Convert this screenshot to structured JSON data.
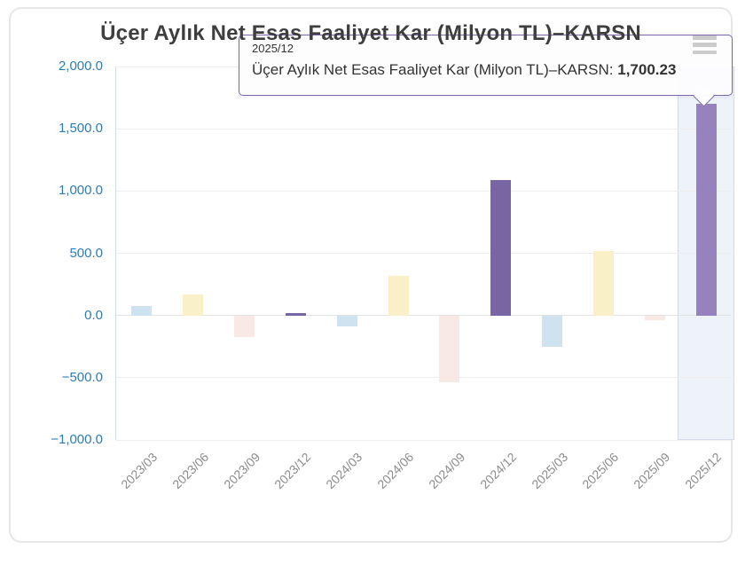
{
  "chart_data": {
    "type": "bar",
    "title": "Üçer Aylık Net Esas Faaliyet Kar (Milyon TL)–KARSN",
    "categories": [
      "2023/03",
      "2023/06",
      "2023/09",
      "2023/12",
      "2024/03",
      "2024/06",
      "2024/09",
      "2024/12",
      "2025/03",
      "2025/06",
      "2025/09",
      "2025/12"
    ],
    "values": [
      75,
      170,
      -170,
      18,
      -90,
      320,
      -540,
      1085,
      -250,
      515,
      -40,
      1700.23
    ],
    "bar_colors": [
      "#cfe2f0",
      "#faf0c8",
      "#f8e9e4",
      "#7766a3",
      "#cfe2f0",
      "#faf0c8",
      "#f8e9e4",
      "#7766a3",
      "#cfe2f0",
      "#faf0c8",
      "#f8e9e4",
      "#9683bd"
    ],
    "highlight_index": 11,
    "highlight_band_color": "#eef2f9",
    "ylim": [
      -1000,
      2000
    ],
    "yticks": [
      {
        "label": "2,000.0",
        "value": 2000
      },
      {
        "label": "1,500.0",
        "value": 1500
      },
      {
        "label": "1,000.0",
        "value": 1000
      },
      {
        "label": "500.0",
        "value": 500
      },
      {
        "label": "0.0",
        "value": 0
      },
      {
        "label": "−500.0",
        "value": -500
      },
      {
        "label": "−1,000.0",
        "value": -1000
      }
    ],
    "xlabel": "",
    "ylabel": "",
    "grid": true,
    "legend": "none"
  },
  "tooltip": {
    "header": "2025/12",
    "series_label": "Üçer Aylık Net Esas Faaliyet Kar (Milyon TL)–KARSN: ",
    "value": "1,700.23",
    "border_color": "#7c68a9"
  },
  "icons": {
    "menu": "hamburger-menu-icon"
  },
  "colors": {
    "y_label": "#2d7bb9",
    "x_label": "#8c8c8c",
    "title": "#3e3e3e",
    "grid": "#eeeeee",
    "zero_line": "#e2e2e2",
    "axis_line": "#d6dde6",
    "menu_icon": "#cccccc",
    "card_border": "#e7e7e7",
    "tooltip_border": "#7c68a9"
  }
}
